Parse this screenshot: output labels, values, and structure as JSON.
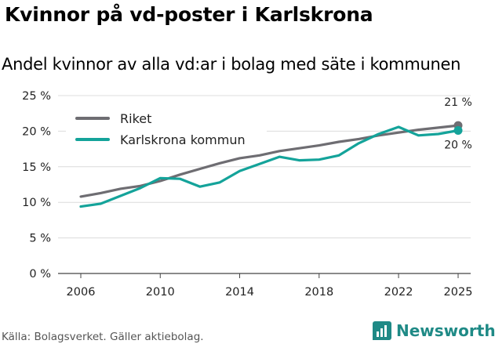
{
  "title": "Kvinnor på vd-poster i Karlskrona",
  "subtitle": "Andel kvinnor av alla vd:ar i bolag med säte i kommunen",
  "source": "Källa: Bolagsverket. Gäller aktiebolag.",
  "brand": "Newsworthy",
  "colors": {
    "riket": "#6e6d72",
    "karlskrona": "#14a39a",
    "grid": "#dcdcdc",
    "brand": "#1f8a86"
  },
  "chart_data": {
    "type": "line",
    "title": "Kvinnor på vd-poster i Karlskrona",
    "subtitle": "Andel kvinnor av alla vd:ar i bolag med säte i kommunen",
    "xlabel": "",
    "ylabel": "",
    "x": [
      2006,
      2007,
      2008,
      2009,
      2010,
      2011,
      2012,
      2013,
      2014,
      2015,
      2016,
      2017,
      2018,
      2019,
      2020,
      2021,
      2022,
      2023,
      2024,
      2025
    ],
    "xticks": [
      2006,
      2010,
      2014,
      2018,
      2022,
      2025
    ],
    "yticks": [
      0,
      5,
      10,
      15,
      20,
      25
    ],
    "ytick_labels": [
      "0 %",
      "5 %",
      "10 %",
      "15 %",
      "20 %",
      "25 %"
    ],
    "ylim": [
      0,
      25
    ],
    "xlim": [
      2006,
      2025
    ],
    "grid": true,
    "legend_position": "top-left",
    "series": [
      {
        "name": "Riket",
        "color": "#6e6d72",
        "values": [
          10.8,
          11.3,
          11.9,
          12.3,
          13.0,
          13.9,
          14.7,
          15.5,
          16.2,
          16.6,
          17.2,
          17.6,
          18.0,
          18.5,
          18.9,
          19.4,
          19.8,
          20.2,
          20.5,
          20.8
        ],
        "end_label": "21 %"
      },
      {
        "name": "Karlskrona kommun",
        "color": "#14a39a",
        "values": [
          9.4,
          9.8,
          10.9,
          12.0,
          13.4,
          13.3,
          12.2,
          12.8,
          14.4,
          15.4,
          16.4,
          15.9,
          16.0,
          16.6,
          18.3,
          19.6,
          20.6,
          19.4,
          19.6,
          20.1
        ],
        "end_label": "20 %"
      }
    ]
  }
}
